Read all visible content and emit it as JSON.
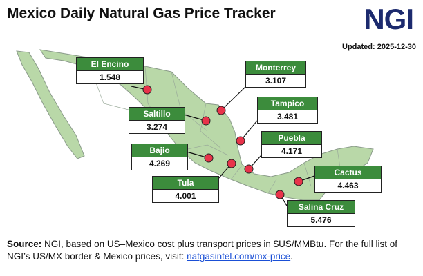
{
  "header": {
    "title": "Mexico Daily Natural Gas Price Tracker",
    "logo": "NGI",
    "updated": "Updated: 2025-12-30"
  },
  "locations": [
    {
      "name": "El Encino",
      "price": "1.548"
    },
    {
      "name": "Monterrey",
      "price": "3.107"
    },
    {
      "name": "Saltillo",
      "price": "3.274"
    },
    {
      "name": "Tampico",
      "price": "3.481"
    },
    {
      "name": "Bajio",
      "price": "4.269"
    },
    {
      "name": "Puebla",
      "price": "4.171"
    },
    {
      "name": "Tula",
      "price": "4.001"
    },
    {
      "name": "Cactus",
      "price": "4.463"
    },
    {
      "name": "Salina Cruz",
      "price": "5.476"
    }
  ],
  "footer": {
    "source_label": "Source:",
    "text": "NGI, based on US–Mexico cost plus transport prices in $US/MMBtu. For the full list of NGI’s US/MX border & Mexico prices, visit:",
    "link": "natgasintel.com/mx-price",
    "end": "."
  }
}
